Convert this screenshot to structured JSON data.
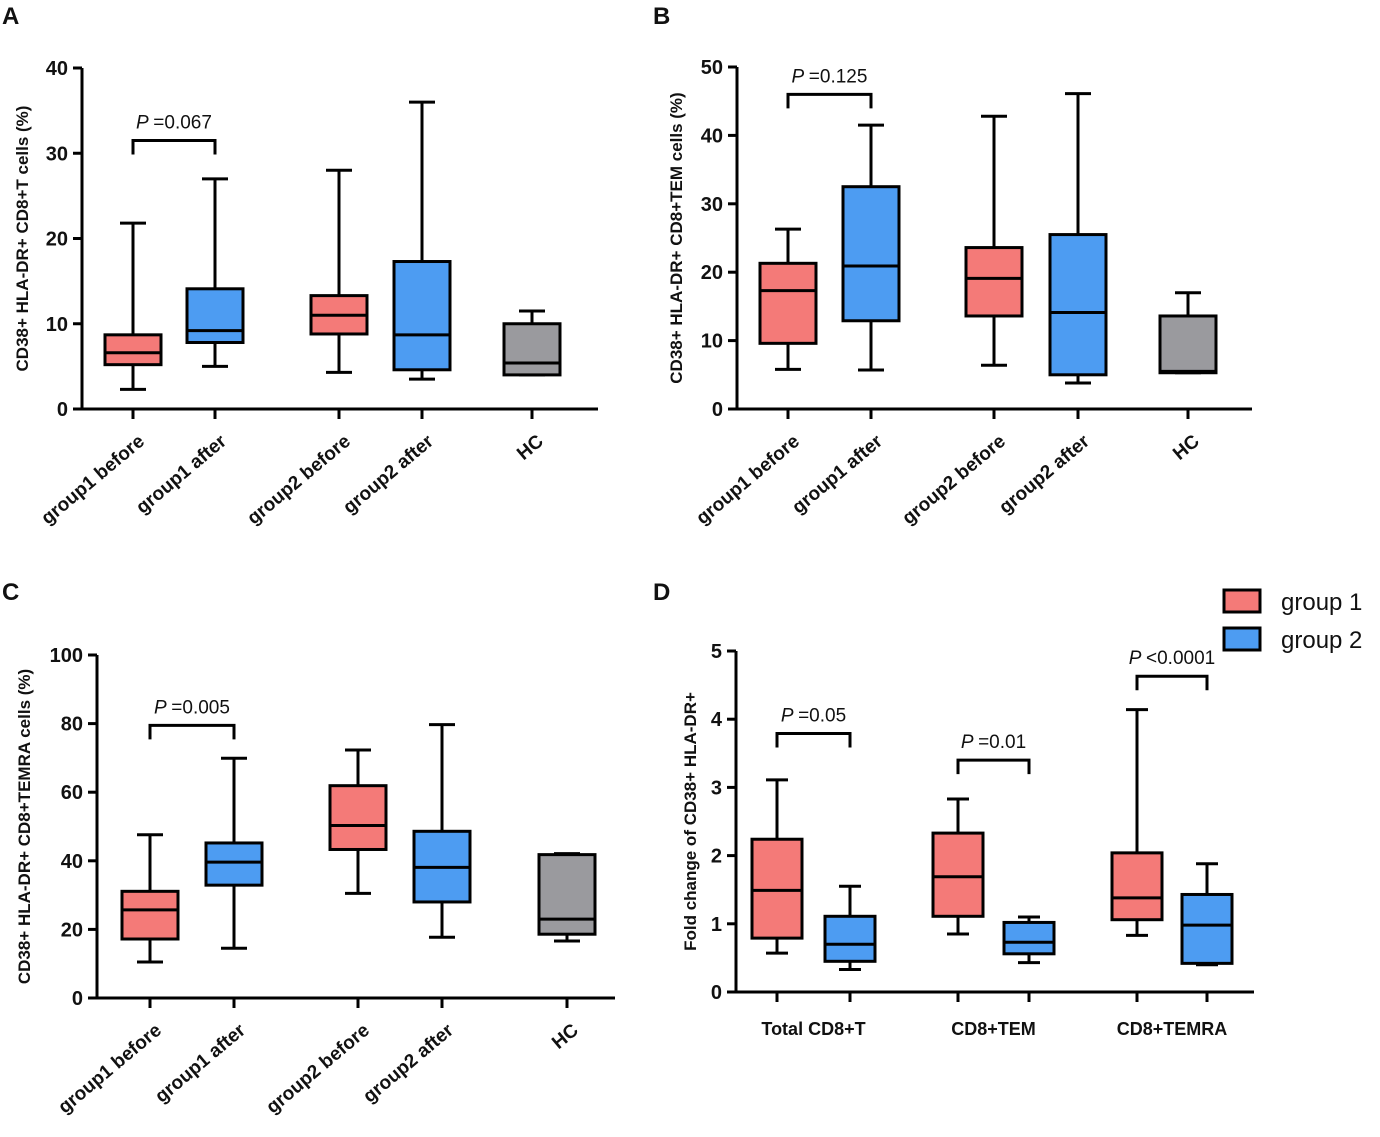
{
  "colors": {
    "group1": "#f47a78",
    "group2": "#4d9cf2",
    "hc": "#9a9a9e",
    "stroke": "#000000"
  },
  "legend": [
    {
      "label": "group 1",
      "color_key": "group1"
    },
    {
      "label": "group 2",
      "color_key": "group2"
    }
  ],
  "chart_data": [
    {
      "panel": "A",
      "type": "boxplot",
      "ylabel": "CD38+ HLA-DR+ CD8+T cells (%)",
      "ylim": [
        0,
        40
      ],
      "yticks": [
        0,
        10,
        20,
        30,
        40
      ],
      "categories": [
        "group1 before",
        "group1 after",
        "group2 before",
        "group2 after",
        "HC"
      ],
      "boxes": [
        {
          "min": 2.3,
          "q1": 5.2,
          "median": 6.6,
          "q3": 8.7,
          "max": 21.8,
          "color_key": "group1"
        },
        {
          "min": 5.0,
          "q1": 7.8,
          "median": 9.2,
          "q3": 14.1,
          "max": 27.0,
          "color_key": "group2"
        },
        {
          "min": 4.3,
          "q1": 8.8,
          "median": 11.0,
          "q3": 13.3,
          "max": 28.0,
          "color_key": "group1"
        },
        {
          "min": 3.5,
          "q1": 4.6,
          "median": 8.7,
          "q3": 17.3,
          "max": 36.0,
          "color_key": "group2"
        },
        {
          "min": 4.0,
          "q1": 4.0,
          "median": 5.4,
          "q3": 10.0,
          "max": 11.5,
          "color_key": "hc"
        }
      ],
      "annotations": [
        {
          "from": 0,
          "to": 1,
          "y": 31.5,
          "p_symbol": "P",
          "text": "=0.067"
        }
      ]
    },
    {
      "panel": "B",
      "type": "boxplot",
      "ylabel": "CD38+ HLA-DR+ CD8+TEM cells (%)",
      "ylim": [
        0,
        50
      ],
      "yticks": [
        0,
        10,
        20,
        30,
        40,
        50
      ],
      "categories": [
        "group1 before",
        "group1 after",
        "group2 before",
        "group2 after",
        "HC"
      ],
      "boxes": [
        {
          "min": 5.8,
          "q1": 9.6,
          "median": 17.3,
          "q3": 21.3,
          "max": 26.3,
          "color_key": "group1"
        },
        {
          "min": 5.7,
          "q1": 12.9,
          "median": 20.9,
          "q3": 32.5,
          "max": 41.5,
          "color_key": "group2"
        },
        {
          "min": 6.4,
          "q1": 13.6,
          "median": 19.1,
          "q3": 23.6,
          "max": 42.8,
          "color_key": "group1"
        },
        {
          "min": 3.8,
          "q1": 5.0,
          "median": 14.1,
          "q3": 25.5,
          "max": 46.1,
          "color_key": "group2"
        },
        {
          "min": 5.3,
          "q1": 5.3,
          "median": 5.5,
          "q3": 13.6,
          "max": 17.0,
          "color_key": "hc"
        }
      ],
      "annotations": [
        {
          "from": 0,
          "to": 1,
          "y": 46.0,
          "p_symbol": "P",
          "text": "=0.125"
        }
      ]
    },
    {
      "panel": "C",
      "type": "boxplot",
      "ylabel": "CD38+ HLA-DR+ CD8+TEMRA cells (%)",
      "ylim": [
        0,
        100
      ],
      "yticks": [
        0,
        20,
        40,
        60,
        80,
        100
      ],
      "categories": [
        "group1 before",
        "group1 after",
        "group2 before",
        "group2 after",
        "HC"
      ],
      "boxes": [
        {
          "min": 10.5,
          "q1": 17.2,
          "median": 25.7,
          "q3": 31.1,
          "max": 47.6,
          "color_key": "group1"
        },
        {
          "min": 14.5,
          "q1": 32.9,
          "median": 39.6,
          "q3": 45.2,
          "max": 69.9,
          "color_key": "group2"
        },
        {
          "min": 30.5,
          "q1": 43.3,
          "median": 50.3,
          "q3": 61.9,
          "max": 72.3,
          "color_key": "group1"
        },
        {
          "min": 17.7,
          "q1": 28.0,
          "median": 38.1,
          "q3": 48.6,
          "max": 79.7,
          "color_key": "group2"
        },
        {
          "min": 16.6,
          "q1": 18.6,
          "median": 23.0,
          "q3": 41.8,
          "max": 42.1,
          "color_key": "hc"
        }
      ],
      "annotations": [
        {
          "from": 0,
          "to": 1,
          "y": 79.5,
          "p_symbol": "P",
          "text": "=0.005"
        }
      ]
    },
    {
      "panel": "D",
      "type": "boxplot",
      "ylabel": "Fold change of CD38+ HLA-DR+",
      "ylim": [
        0,
        5
      ],
      "yticks": [
        0,
        1,
        2,
        3,
        4,
        5
      ],
      "categories": [
        "Total CD8+T",
        "CD8+TEM",
        "CD8+TEMRA"
      ],
      "series": [
        "group 1",
        "group 2"
      ],
      "boxes": [
        {
          "category": 0,
          "series": 0,
          "min": 0.57,
          "q1": 0.79,
          "median": 1.49,
          "q3": 2.24,
          "max": 3.11,
          "color_key": "group1"
        },
        {
          "category": 0,
          "series": 1,
          "min": 0.33,
          "q1": 0.45,
          "median": 0.7,
          "q3": 1.11,
          "max": 1.55,
          "color_key": "group2"
        },
        {
          "category": 1,
          "series": 0,
          "min": 0.85,
          "q1": 1.11,
          "median": 1.69,
          "q3": 2.33,
          "max": 2.83,
          "color_key": "group1"
        },
        {
          "category": 1,
          "series": 1,
          "min": 0.43,
          "q1": 0.56,
          "median": 0.73,
          "q3": 1.02,
          "max": 1.1,
          "color_key": "group2"
        },
        {
          "category": 2,
          "series": 0,
          "min": 0.83,
          "q1": 1.06,
          "median": 1.38,
          "q3": 2.04,
          "max": 4.14,
          "color_key": "group1"
        },
        {
          "category": 2,
          "series": 1,
          "min": 0.4,
          "q1": 0.42,
          "median": 0.98,
          "q3": 1.43,
          "max": 1.88,
          "color_key": "group2"
        }
      ],
      "annotations": [
        {
          "category": 0,
          "y": 3.79,
          "p_symbol": "P",
          "text": "=0.05"
        },
        {
          "category": 1,
          "y": 3.4,
          "p_symbol": "P",
          "text": "=0.01"
        },
        {
          "category": 2,
          "y": 4.63,
          "p_symbol": "P",
          "text": "<0.0001"
        }
      ]
    }
  ]
}
